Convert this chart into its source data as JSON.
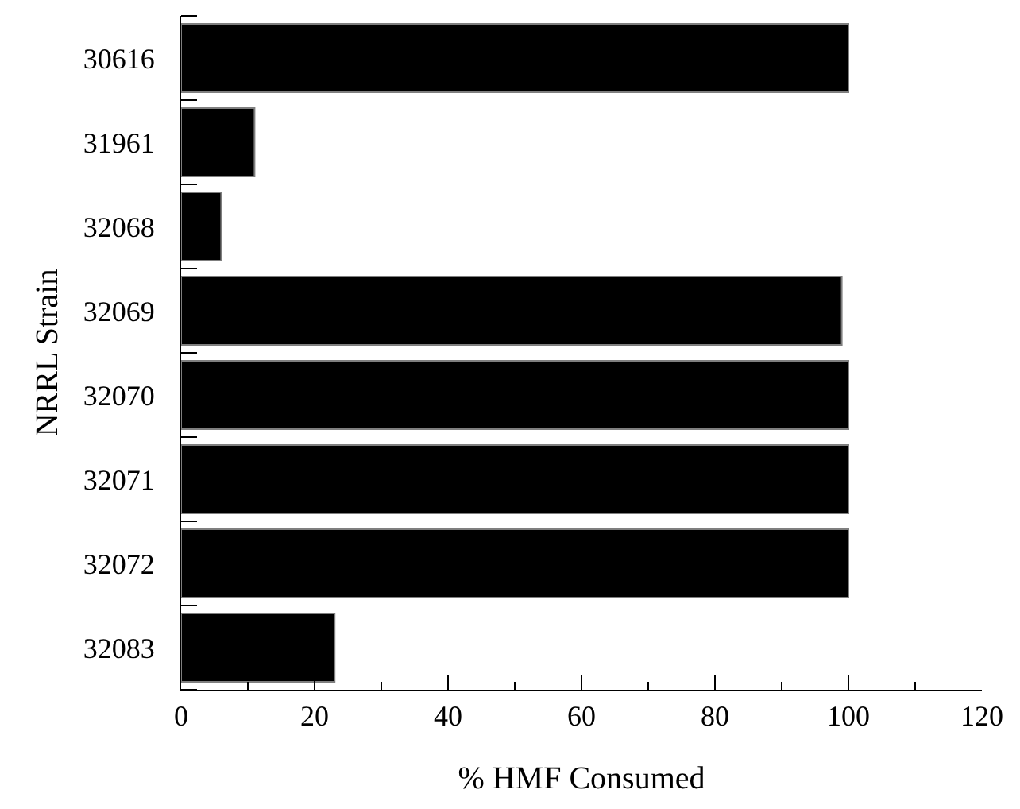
{
  "chart_data": {
    "type": "bar",
    "orientation": "horizontal",
    "categories": [
      "30616",
      "31961",
      "32068",
      "32069",
      "32070",
      "32071",
      "32072",
      "32083"
    ],
    "values": [
      100,
      11,
      6,
      99,
      100,
      100,
      100,
      23
    ],
    "color": "#000000",
    "xlabel": "% HMF Consumed",
    "ylabel": "NRRL Strain",
    "xlim": [
      0,
      120
    ],
    "xticks": [
      0,
      {
        "value": 10,
        "label": null
      },
      20,
      {
        "value": 30,
        "label": null
      },
      40,
      {
        "value": 50,
        "label": null
      },
      60,
      {
        "value": 70,
        "label": null
      },
      80,
      {
        "value": 90,
        "label": null
      },
      100,
      {
        "value": 110,
        "label": null
      },
      120
    ]
  }
}
